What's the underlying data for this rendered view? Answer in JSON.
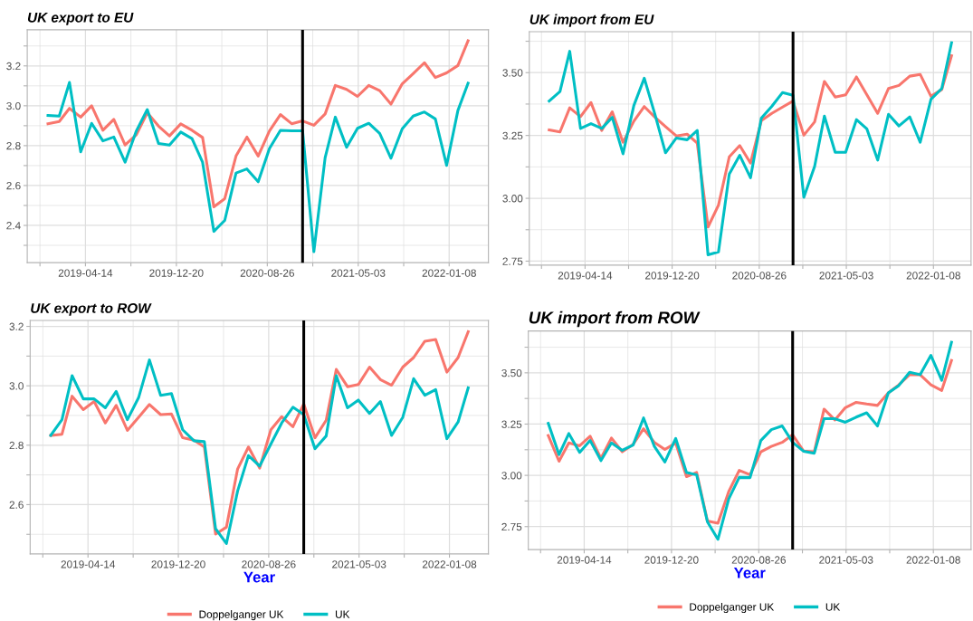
{
  "chart_data": [
    {
      "type": "line",
      "title": "UK export to EU",
      "x": [
        "2019-01",
        "2019-02",
        "2019-03",
        "2019-04",
        "2019-05",
        "2019-06",
        "2019-07",
        "2019-08",
        "2019-09",
        "2019-10",
        "2019-11",
        "2019-12",
        "2020-01",
        "2020-02",
        "2020-03",
        "2020-04",
        "2020-05",
        "2020-06",
        "2020-07",
        "2020-08",
        "2020-09",
        "2020-10",
        "2020-11",
        "2020-12",
        "2021-01",
        "2021-02",
        "2021-03",
        "2021-04",
        "2021-05",
        "2021-06",
        "2021-07",
        "2021-08",
        "2021-09",
        "2021-10",
        "2021-11",
        "2021-12",
        "2022-01",
        "2022-02",
        "2022-03"
      ],
      "series": [
        {
          "color": "#F8766D",
          "values": [
            2.91,
            2.921,
            2.987,
            2.943,
            3.0,
            2.877,
            2.932,
            2.803,
            2.855,
            2.965,
            2.898,
            2.849,
            2.909,
            2.877,
            2.841,
            2.493,
            2.534,
            2.748,
            2.843,
            2.748,
            2.874,
            2.956,
            2.91,
            2.924,
            2.902,
            2.959,
            3.102,
            3.082,
            3.047,
            3.102,
            3.076,
            3.008,
            3.11,
            3.161,
            3.216,
            3.142,
            3.165,
            3.202,
            3.326
          ]
        },
        {
          "color": "#00BFC4",
          "values": [
            2.951,
            2.948,
            3.117,
            2.769,
            2.912,
            2.824,
            2.843,
            2.717,
            2.874,
            2.981,
            2.811,
            2.803,
            2.868,
            2.835,
            2.717,
            2.37,
            2.425,
            2.663,
            2.683,
            2.619,
            2.786,
            2.877,
            2.874,
            2.874,
            2.268,
            2.74,
            2.943,
            2.792,
            2.887,
            2.912,
            2.861,
            2.737,
            2.885,
            2.948,
            2.969,
            2.934,
            2.701,
            2.976,
            3.113
          ]
        }
      ],
      "xlim": [
        "2018-11-05",
        "2022-04-26"
      ],
      "xticks": [
        {
          "value": "2018-12-10",
          "label": null
        },
        "2019-04-14",
        {
          "value": "2019-08-17",
          "label": null
        },
        "2019-12-20",
        {
          "value": "2020-04-23",
          "label": null
        },
        "2020-08-26",
        {
          "value": "2020-12-29",
          "label": null
        },
        "2021-05-03",
        {
          "value": "2021-09-05",
          "label": null
        },
        "2022-01-08"
      ],
      "ylim": [
        2.213,
        3.381
      ],
      "yticks": [
        {
          "value": 2.3,
          "label": null
        },
        2.4,
        {
          "value": 2.5,
          "label": null
        },
        2.6,
        {
          "value": 2.7,
          "label": null
        },
        2.8,
        {
          "value": 2.9,
          "label": null
        },
        {
          "value": 3.0,
          "label": "3.0"
        },
        {
          "value": 3.1,
          "label": null
        },
        3.2,
        {
          "value": 3.3,
          "label": null
        }
      ],
      "ref_lines": [
        {
          "axis": "x",
          "value": "2020-12-01",
          "color": "#000000"
        }
      ],
      "grid": true,
      "legend": false
    },
    {
      "type": "line",
      "title": "UK import from EU",
      "x": [
        "2019-01",
        "2019-02",
        "2019-03",
        "2019-04",
        "2019-05",
        "2019-06",
        "2019-07",
        "2019-08",
        "2019-09",
        "2019-10",
        "2019-11",
        "2019-12",
        "2020-01",
        "2020-02",
        "2020-03",
        "2020-04",
        "2020-05",
        "2020-06",
        "2020-07",
        "2020-08",
        "2020-09",
        "2020-10",
        "2020-11",
        "2020-12",
        "2021-01",
        "2021-02",
        "2021-03",
        "2021-04",
        "2021-05",
        "2021-06",
        "2021-07",
        "2021-08",
        "2021-09",
        "2021-10",
        "2021-11",
        "2021-12",
        "2022-01",
        "2022-02",
        "2022-03"
      ],
      "series": [
        {
          "color": "#F8766D",
          "values": [
            3.272,
            3.264,
            3.36,
            3.325,
            3.381,
            3.27,
            3.344,
            3.223,
            3.307,
            3.365,
            3.322,
            3.285,
            3.248,
            3.255,
            3.22,
            2.886,
            2.973,
            3.165,
            3.21,
            3.14,
            3.309,
            3.338,
            3.363,
            3.387,
            3.251,
            3.304,
            3.465,
            3.403,
            3.412,
            3.483,
            3.412,
            3.338,
            3.437,
            3.449,
            3.486,
            3.493,
            3.406,
            3.433,
            3.567
          ]
        },
        {
          "color": "#00BFC4",
          "values": [
            3.387,
            3.425,
            3.585,
            3.278,
            3.297,
            3.278,
            3.322,
            3.177,
            3.369,
            3.478,
            3.332,
            3.181,
            3.24,
            3.233,
            3.27,
            2.775,
            2.787,
            3.097,
            3.171,
            3.082,
            3.319,
            3.366,
            3.421,
            3.41,
            3.004,
            3.127,
            3.327,
            3.183,
            3.183,
            3.313,
            3.276,
            3.152,
            3.334,
            3.288,
            3.324,
            3.223,
            3.394,
            3.437,
            3.619
          ]
        }
      ],
      "xlim": [
        "2018-11-05",
        "2022-04-26"
      ],
      "xticks": [
        {
          "value": "2018-12-10",
          "label": null
        },
        "2019-04-14",
        {
          "value": "2019-08-17",
          "label": null
        },
        "2019-12-20",
        {
          "value": "2020-04-23",
          "label": null
        },
        "2020-08-26",
        {
          "value": "2020-12-29",
          "label": null
        },
        "2021-05-03",
        {
          "value": "2021-09-05",
          "label": null
        },
        "2022-01-08"
      ],
      "ylim": [
        2.734,
        3.663
      ],
      "yticks": [
        {
          "value": 2.75,
          "label": "2.75"
        },
        {
          "value": 2.875,
          "label": null
        },
        {
          "value": 3.0,
          "label": "3.00"
        },
        {
          "value": 3.125,
          "label": null
        },
        {
          "value": 3.25,
          "label": "3.25"
        },
        {
          "value": 3.375,
          "label": null
        },
        {
          "value": 3.5,
          "label": "3.50"
        },
        {
          "value": 3.625,
          "label": null
        }
      ],
      "ref_lines": [
        {
          "axis": "x",
          "value": "2020-12-01",
          "color": "#000000"
        }
      ],
      "grid": true,
      "legend": false
    },
    {
      "type": "line",
      "title": "UK export to ROW",
      "xlabel": "Year",
      "x": [
        "2019-01",
        "2019-02",
        "2019-03",
        "2019-04",
        "2019-05",
        "2019-06",
        "2019-07",
        "2019-08",
        "2019-09",
        "2019-10",
        "2019-11",
        "2019-12",
        "2020-01",
        "2020-02",
        "2020-03",
        "2020-04",
        "2020-05",
        "2020-06",
        "2020-07",
        "2020-08",
        "2020-09",
        "2020-10",
        "2020-11",
        "2020-12",
        "2021-01",
        "2021-02",
        "2021-03",
        "2021-04",
        "2021-05",
        "2021-06",
        "2021-07",
        "2021-08",
        "2021-09",
        "2021-10",
        "2021-11",
        "2021-12",
        "2022-01",
        "2022-02",
        "2022-03"
      ],
      "series": [
        {
          "name": "Doppelganger UK",
          "color": "#F8766D",
          "values": [
            2.833,
            2.837,
            2.965,
            2.92,
            2.947,
            2.875,
            2.934,
            2.85,
            2.894,
            2.937,
            2.903,
            2.905,
            2.825,
            2.817,
            2.794,
            2.501,
            2.524,
            2.72,
            2.794,
            2.723,
            2.852,
            2.896,
            2.862,
            2.939,
            2.825,
            2.884,
            3.055,
            2.997,
            3.004,
            3.063,
            3.021,
            3.002,
            3.063,
            3.095,
            3.15,
            3.156,
            3.046,
            3.095,
            3.182
          ]
        },
        {
          "name": "UK",
          "color": "#00BFC4",
          "values": [
            2.833,
            2.886,
            3.034,
            2.956,
            2.956,
            2.926,
            2.981,
            2.886,
            2.96,
            3.087,
            2.968,
            2.974,
            2.852,
            2.815,
            2.812,
            2.519,
            2.469,
            2.646,
            2.765,
            2.73,
            2.804,
            2.875,
            2.928,
            2.903,
            2.788,
            2.831,
            3.034,
            2.926,
            2.952,
            2.907,
            2.947,
            2.833,
            2.894,
            3.024,
            2.968,
            2.987,
            2.822,
            2.878,
            2.993
          ]
        }
      ],
      "xlim": [
        "2018-11-05",
        "2022-04-26"
      ],
      "xticks": [
        {
          "value": "2018-12-10",
          "label": null
        },
        "2019-04-14",
        {
          "value": "2019-08-17",
          "label": null
        },
        "2019-12-20",
        {
          "value": "2020-04-23",
          "label": null
        },
        "2020-08-26",
        {
          "value": "2020-12-29",
          "label": null
        },
        "2021-05-03",
        {
          "value": "2021-09-05",
          "label": null
        },
        "2022-01-08"
      ],
      "ylim": [
        2.434,
        3.22
      ],
      "yticks": [
        {
          "value": 2.5,
          "label": null
        },
        2.6,
        {
          "value": 2.7,
          "label": null
        },
        2.8,
        {
          "value": 2.9,
          "label": null
        },
        {
          "value": 3.0,
          "label": "3.0"
        },
        {
          "value": 3.1,
          "label": null
        },
        3.2
      ],
      "ref_lines": [
        {
          "axis": "x",
          "value": "2020-12-01",
          "color": "#000000"
        }
      ],
      "grid": true,
      "legend": "bottom"
    },
    {
      "type": "line",
      "title": "UK import from ROW",
      "xlabel": "Year",
      "x": [
        "2019-01",
        "2019-02",
        "2019-03",
        "2019-04",
        "2019-05",
        "2019-06",
        "2019-07",
        "2019-08",
        "2019-09",
        "2019-10",
        "2019-11",
        "2019-12",
        "2020-01",
        "2020-02",
        "2020-03",
        "2020-04",
        "2020-05",
        "2020-06",
        "2020-07",
        "2020-08",
        "2020-09",
        "2020-10",
        "2020-11",
        "2020-12",
        "2021-01",
        "2021-02",
        "2021-03",
        "2021-04",
        "2021-05",
        "2021-06",
        "2021-07",
        "2021-08",
        "2021-09",
        "2021-10",
        "2021-11",
        "2021-12",
        "2022-01",
        "2022-02",
        "2022-03"
      ],
      "series": [
        {
          "name": "Doppelganger UK",
          "color": "#F8766D",
          "values": [
            3.194,
            3.069,
            3.158,
            3.144,
            3.191,
            3.083,
            3.182,
            3.115,
            3.151,
            3.227,
            3.161,
            3.126,
            3.158,
            2.994,
            3.014,
            2.777,
            2.767,
            2.921,
            3.024,
            3.003,
            3.115,
            3.141,
            3.161,
            3.198,
            3.119,
            3.115,
            3.323,
            3.27,
            3.33,
            3.356,
            3.348,
            3.341,
            3.402,
            3.441,
            3.491,
            3.491,
            3.441,
            3.414,
            3.56
          ]
        },
        {
          "name": "UK",
          "color": "#00BFC4",
          "values": [
            3.254,
            3.101,
            3.204,
            3.112,
            3.17,
            3.072,
            3.158,
            3.122,
            3.148,
            3.28,
            3.141,
            3.065,
            3.18,
            3.014,
            3.003,
            2.773,
            2.688,
            2.885,
            2.99,
            2.989,
            3.17,
            3.223,
            3.241,
            3.161,
            3.118,
            3.108,
            3.276,
            3.276,
            3.259,
            3.284,
            3.305,
            3.241,
            3.402,
            3.438,
            3.503,
            3.491,
            3.585,
            3.463,
            3.649
          ]
        }
      ],
      "xlim": [
        "2018-11-05",
        "2022-04-26"
      ],
      "xticks": [
        {
          "value": "2018-12-10",
          "label": null
        },
        "2019-04-14",
        {
          "value": "2019-08-17",
          "label": null
        },
        "2019-12-20",
        {
          "value": "2020-04-23",
          "label": null
        },
        "2020-08-26",
        {
          "value": "2020-12-29",
          "label": null
        },
        "2021-05-03",
        {
          "value": "2021-09-05",
          "label": null
        },
        "2022-01-08"
      ],
      "ylim": [
        2.638,
        3.704
      ],
      "yticks": [
        {
          "value": 2.75,
          "label": "2.75"
        },
        {
          "value": 2.875,
          "label": null
        },
        {
          "value": 3.0,
          "label": "3.00"
        },
        {
          "value": 3.125,
          "label": null
        },
        {
          "value": 3.25,
          "label": "3.25"
        },
        {
          "value": 3.375,
          "label": null
        },
        {
          "value": 3.5,
          "label": "3.50"
        },
        {
          "value": 3.625,
          "label": null
        }
      ],
      "ref_lines": [
        {
          "axis": "x",
          "value": "2020-12-01",
          "color": "#000000"
        }
      ],
      "grid": true,
      "legend": "bottom"
    }
  ]
}
